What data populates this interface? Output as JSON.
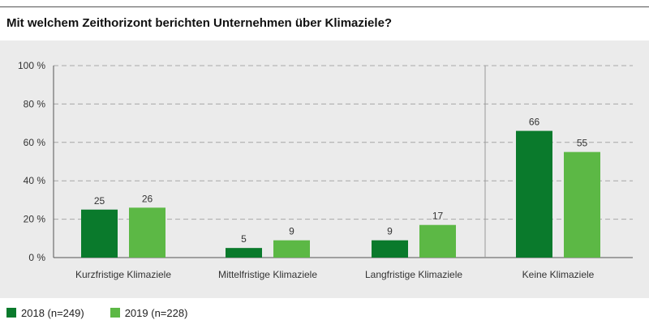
{
  "title": "Mit welchem Zeithorizont berichten Unternehmen über Klimaziele?",
  "colors": {
    "series_2018": "#0a7a2c",
    "series_2019": "#5cb845",
    "background": "#ebebeb"
  },
  "legend": [
    {
      "label": "2018 (n=249)",
      "color": "#0a7a2c"
    },
    {
      "label": "2019 (n=228)",
      "color": "#5cb845"
    }
  ],
  "chart_data": {
    "type": "bar",
    "title": "Mit welchem Zeithorizont berichten Unternehmen über Klimaziele?",
    "categories": [
      "Kurzfristige Klimaziele",
      "Mittelfristige Klimaziele",
      "Langfristige Klimaziele",
      "Keine Klimaziele"
    ],
    "series": [
      {
        "name": "2018 (n=249)",
        "values": [
          25,
          5,
          9,
          66
        ]
      },
      {
        "name": "2019 (n=228)",
        "values": [
          26,
          9,
          17,
          55
        ]
      }
    ],
    "ylim": [
      0,
      100
    ],
    "yticks": [
      "0 %",
      "20 %",
      "40 %",
      "60 %",
      "80 %",
      "100 %"
    ],
    "ytick_values": [
      0,
      20,
      40,
      60,
      80,
      100
    ],
    "grid": true,
    "legend_position": "bottom-left",
    "xlabel": "",
    "ylabel": ""
  }
}
